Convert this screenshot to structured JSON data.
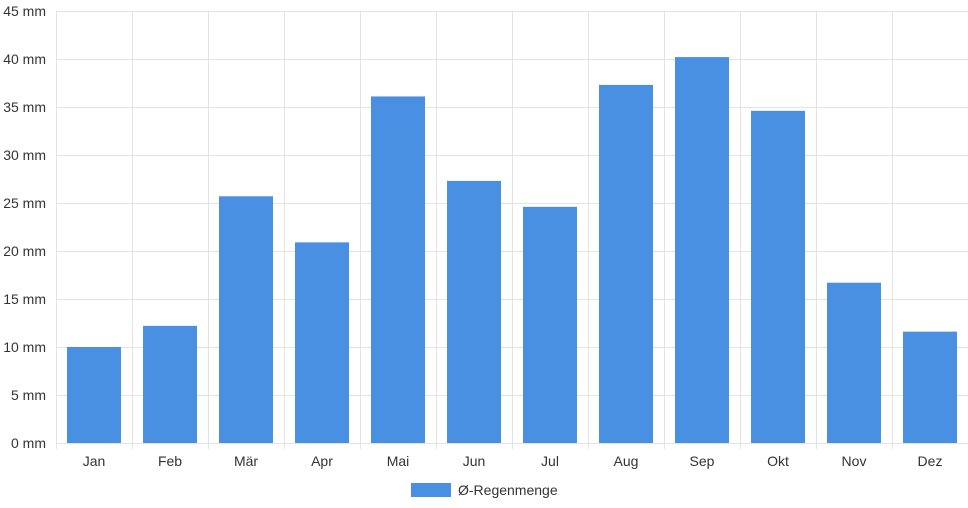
{
  "chart_data": {
    "type": "bar",
    "categories": [
      "Jan",
      "Feb",
      "Mär",
      "Apr",
      "Mai",
      "Jun",
      "Jul",
      "Aug",
      "Sep",
      "Okt",
      "Nov",
      "Dez"
    ],
    "series": [
      {
        "name": "Ø-Regenmenge",
        "color": "#4a90e2",
        "values": [
          10.0,
          12.2,
          25.7,
          20.9,
          36.1,
          27.3,
          24.6,
          37.3,
          40.2,
          34.6,
          16.7,
          11.6
        ]
      }
    ],
    "y_unit": "mm",
    "ylim": [
      0,
      45
    ],
    "yticks": [
      0,
      5,
      10,
      15,
      20,
      25,
      30,
      35,
      40,
      45
    ],
    "ytick_labels": [
      "0 mm",
      "5 mm",
      "10 mm",
      "15 mm",
      "20 mm",
      "25 mm",
      "30 mm",
      "35 mm",
      "40 mm",
      "45 mm"
    ],
    "grid": true,
    "legend_position": "bottom-center"
  }
}
